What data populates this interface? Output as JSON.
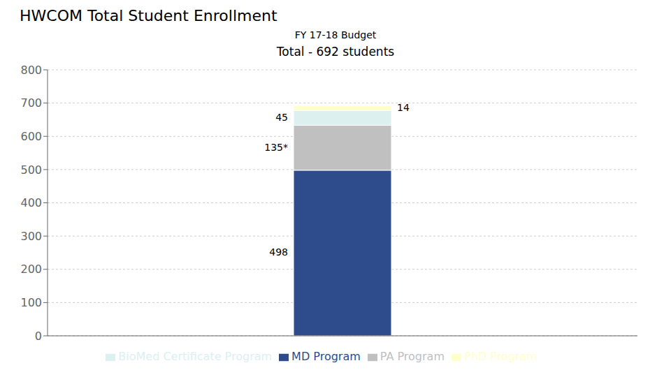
{
  "chart_data": {
    "type": "bar",
    "title": "HWCOM Total Student Enrollment",
    "subtitle": [
      "FY 17-18 Budget",
      "Total - 692 students"
    ],
    "categories": [
      null
    ],
    "series": [
      {
        "name": "MD Program",
        "color": "#2E4B8B",
        "values": [
          498
        ]
      },
      {
        "name": "PA Program",
        "color": "#C0C0C0",
        "values": [
          135
        ],
        "value_labels": [
          "135*"
        ]
      },
      {
        "name": "BioMed Certificate Program",
        "color": "#DCF0F0",
        "values": [
          45
        ]
      },
      {
        "name": "PhD Program",
        "color": "#FFFFCC",
        "values": [
          14
        ]
      }
    ],
    "stacked": true,
    "data_labels": true,
    "ylim": [
      0,
      800
    ],
    "yticks": [
      0,
      100,
      200,
      300,
      400,
      500,
      600,
      700,
      800
    ],
    "grid": true,
    "legend": "bottom"
  }
}
